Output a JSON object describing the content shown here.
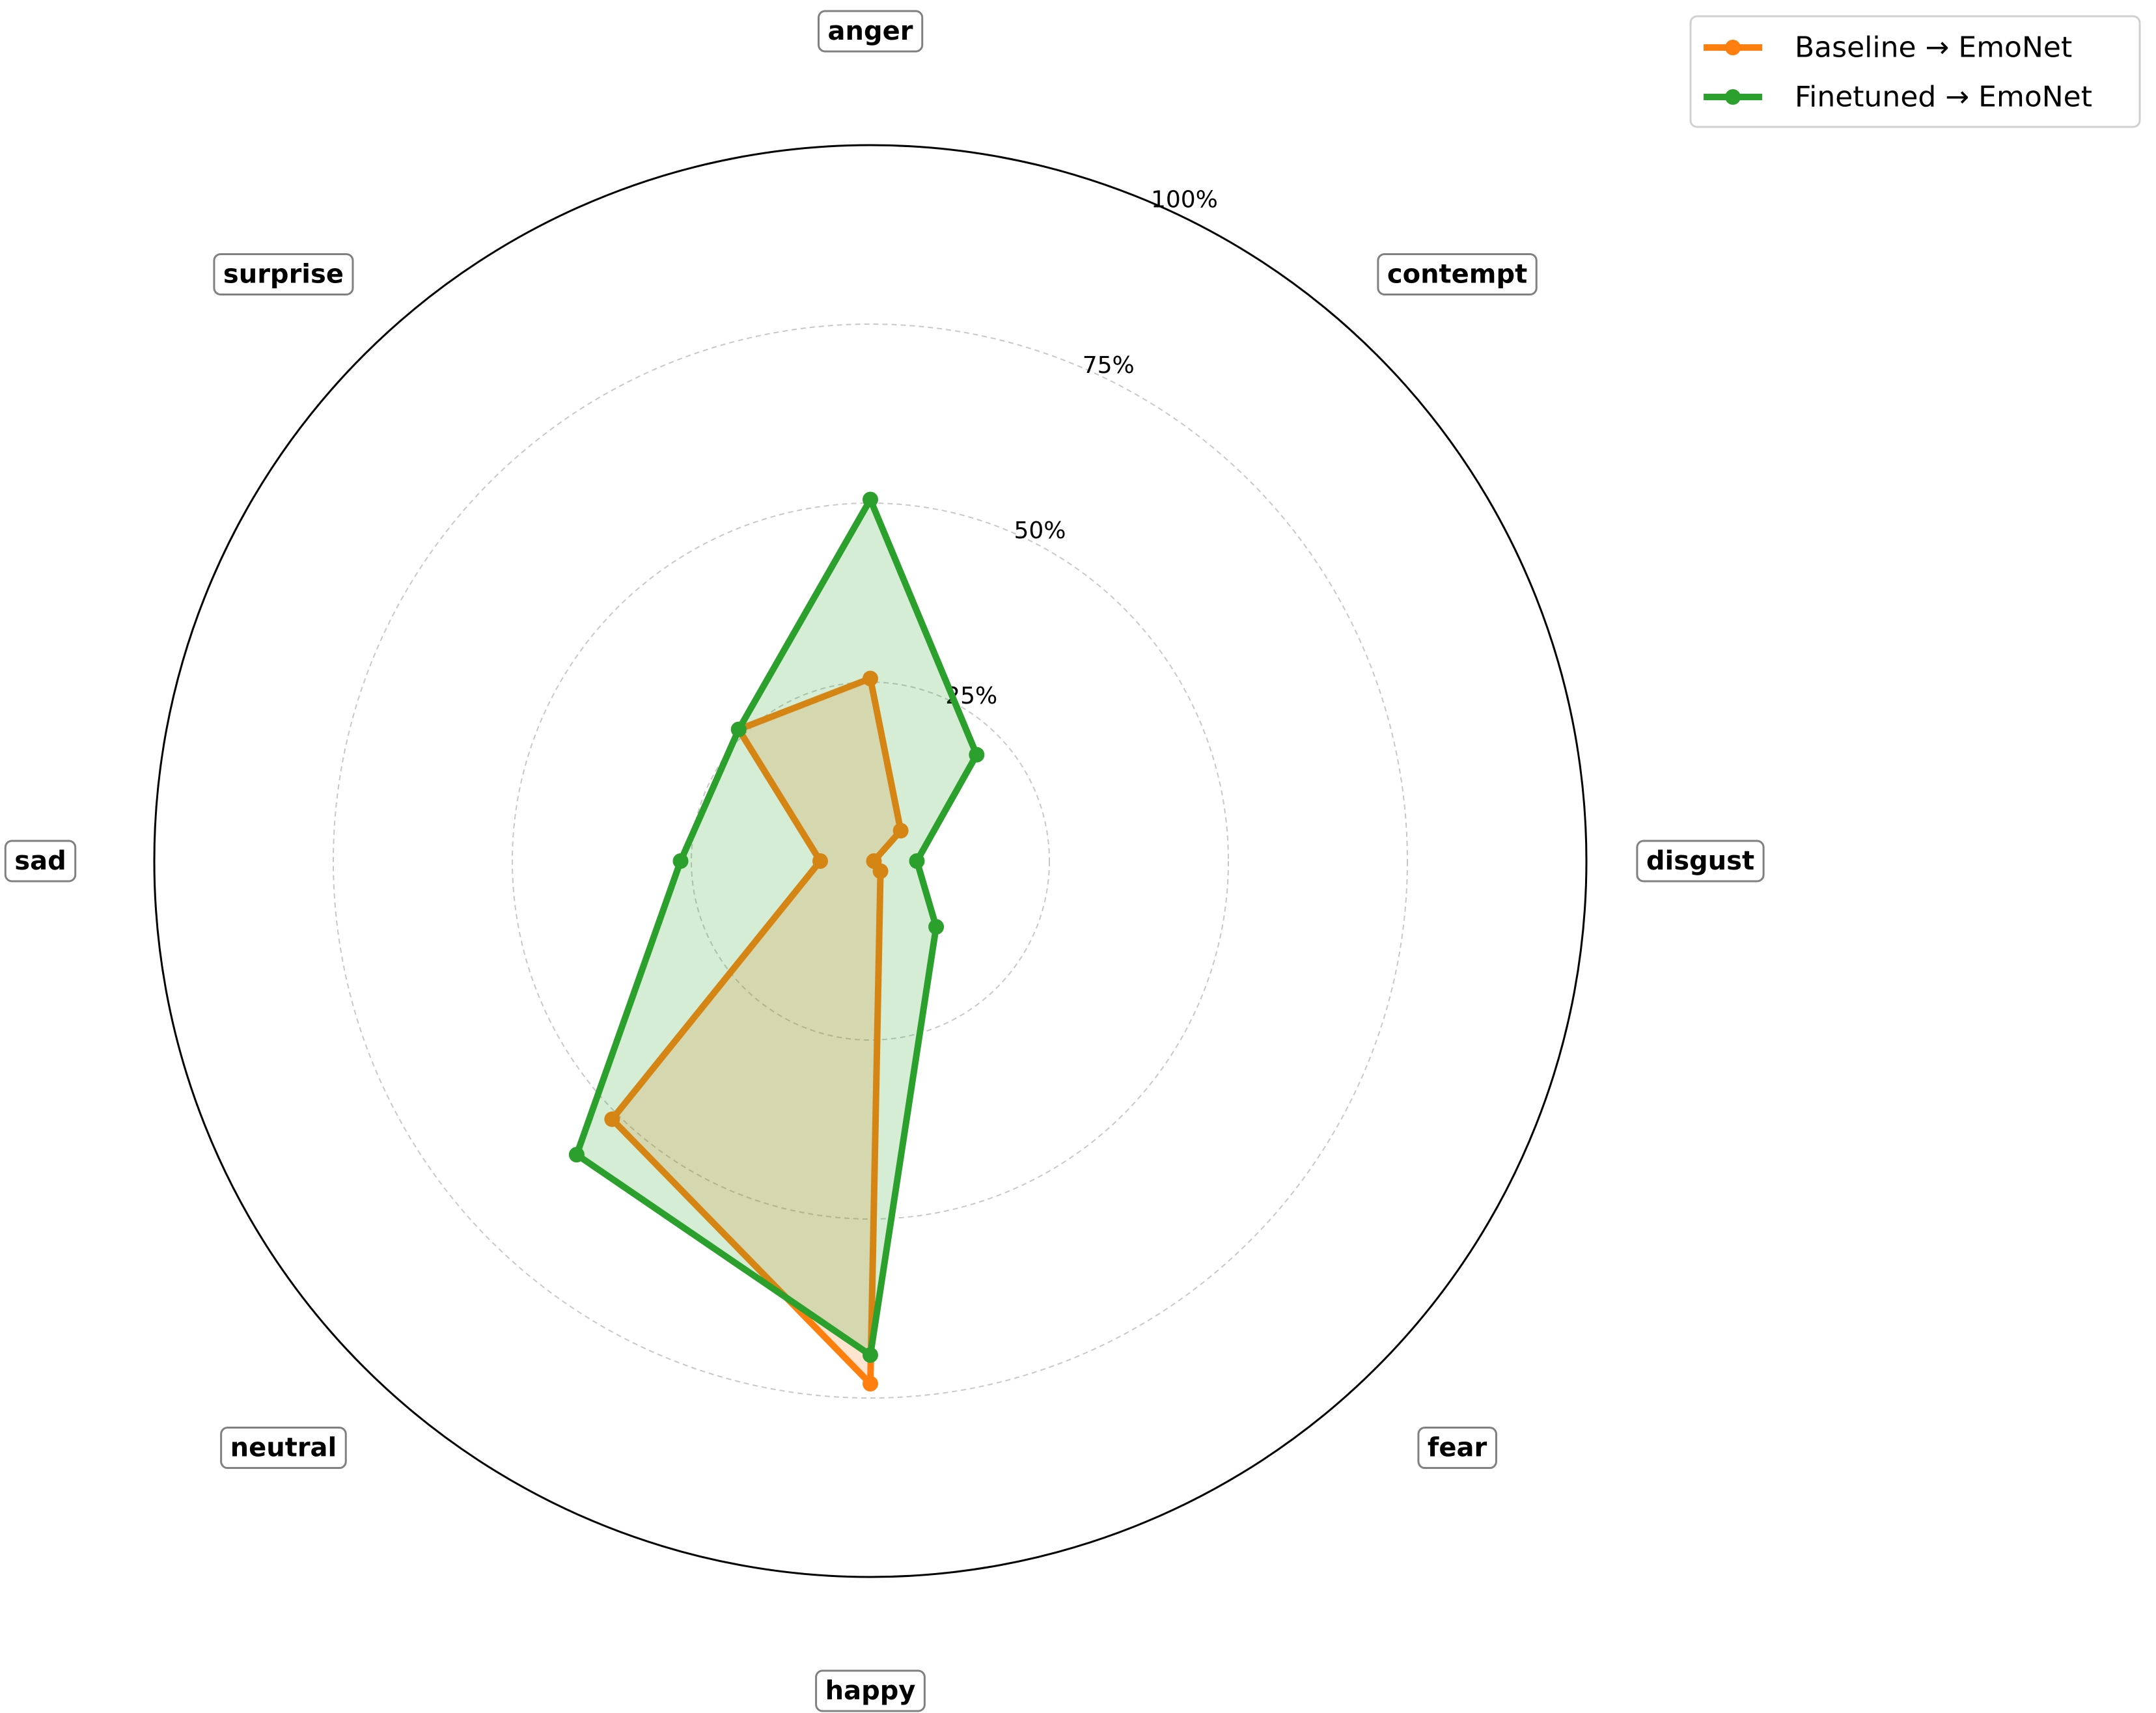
{
  "chart_data": {
    "type": "radar",
    "categories": [
      "anger",
      "contempt",
      "disgust",
      "fear",
      "happy",
      "neutral",
      "sad",
      "surprise"
    ],
    "series": [
      {
        "name": "Baseline → EmoNet",
        "color": "#ff7f0e",
        "values": [
          25.5,
          6.0,
          0.5,
          2.0,
          73.0,
          51.0,
          7.0,
          26.0
        ]
      },
      {
        "name": "Finetuned → EmoNet",
        "color": "#2ca02c",
        "values": [
          50.5,
          21.0,
          6.5,
          13.0,
          69.0,
          58.0,
          26.5,
          26.0
        ]
      }
    ],
    "radial_ticks": [
      25,
      50,
      75,
      100
    ],
    "radial_tick_labels": [
      "25%",
      "50%",
      "75%",
      "100%"
    ],
    "rlim": [
      0,
      100
    ],
    "grid": true,
    "legend_position": "top-right"
  }
}
